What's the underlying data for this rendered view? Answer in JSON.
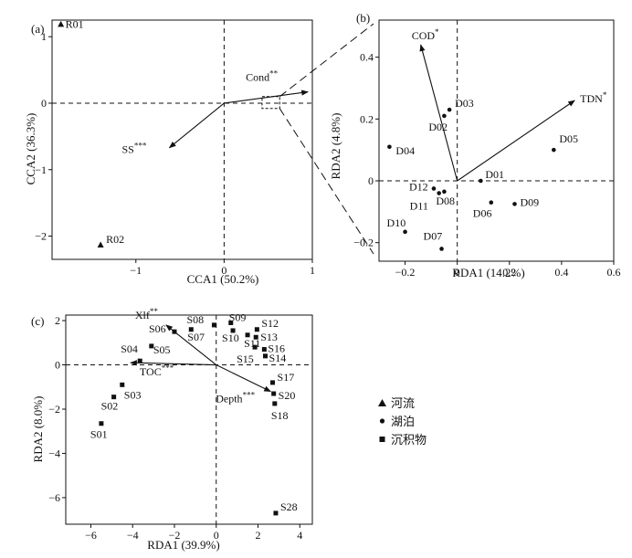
{
  "legend": {
    "items": [
      {
        "symbol": "triangle",
        "label": "河流"
      },
      {
        "symbol": "circle",
        "label": "湖泊"
      },
      {
        "symbol": "square",
        "label": "沉积物"
      }
    ]
  },
  "chart_data": [
    {
      "panel_label": "(a)",
      "type": "scatter",
      "xlabel": "CCA1 (50.2%)",
      "ylabel": "CCA2 (36.3%)",
      "xlim": [
        -1.95,
        1.0
      ],
      "ylim": [
        -2.35,
        1.25
      ],
      "xticks": [
        -1,
        0,
        1
      ],
      "yticks": [
        -2,
        -1,
        0,
        1
      ],
      "marker": "triangle",
      "points": [
        {
          "label": "R01",
          "x": -1.85,
          "y": 1.19
        },
        {
          "label": "R02",
          "x": -1.4,
          "y": -2.13
        }
      ],
      "arrows": [
        {
          "label": "Cond",
          "sup": "**",
          "x": 0.95,
          "y": 0.17
        },
        {
          "label": "SS",
          "sup": "***",
          "x": -0.62,
          "y": -0.67
        }
      ],
      "zoom_box": {
        "x": [
          0.43,
          0.63
        ],
        "y": [
          -0.08,
          0.1
        ]
      }
    },
    {
      "panel_label": "(b)",
      "type": "scatter",
      "xlabel": "RDA1 (14.2%)",
      "ylabel": "RDA2 (4.8%)",
      "xlim": [
        -0.3,
        0.6
      ],
      "ylim": [
        -0.26,
        0.52
      ],
      "xticks": [
        -0.2,
        0,
        0.2,
        0.4,
        0.6
      ],
      "yticks": [
        -0.2,
        0,
        0.2,
        0.4
      ],
      "marker": "circle",
      "points": [
        {
          "label": "D01",
          "x": 0.09,
          "y": 0.0
        },
        {
          "label": "D02",
          "x": -0.05,
          "y": 0.21
        },
        {
          "label": "D03",
          "x": -0.03,
          "y": 0.23
        },
        {
          "label": "D04",
          "x": -0.26,
          "y": 0.11
        },
        {
          "label": "D05",
          "x": 0.37,
          "y": 0.1
        },
        {
          "label": "D06",
          "x": 0.13,
          "y": -0.07
        },
        {
          "label": "D07",
          "x": -0.06,
          "y": -0.22
        },
        {
          "label": "D08",
          "x": -0.05,
          "y": -0.035
        },
        {
          "label": "D09",
          "x": 0.22,
          "y": -0.075
        },
        {
          "label": "D10",
          "x": -0.2,
          "y": -0.165
        },
        {
          "label": "D11",
          "x": -0.07,
          "y": -0.04
        },
        {
          "label": "D12",
          "x": -0.09,
          "y": -0.025
        }
      ],
      "arrows": [
        {
          "label": "COD",
          "sup": "*",
          "x": -0.14,
          "y": 0.44
        },
        {
          "label": "TDN",
          "sup": "*",
          "x": 0.45,
          "y": 0.26
        }
      ]
    },
    {
      "panel_label": "(c)",
      "type": "scatter",
      "xlabel": "RDA1 (39.9%)",
      "ylabel": "RDA2 (8.0%)",
      "xlim": [
        -7.2,
        4.6
      ],
      "ylim": [
        -7.2,
        2.25
      ],
      "xticks": [
        -6,
        -4,
        -2,
        0,
        2,
        4
      ],
      "yticks": [
        -6,
        -4,
        -2,
        0,
        2
      ],
      "marker": "square",
      "points": [
        {
          "label": "S01",
          "x": -5.5,
          "y": -2.65
        },
        {
          "label": "S02",
          "x": -4.9,
          "y": -1.45
        },
        {
          "label": "S03",
          "x": -4.5,
          "y": -0.9
        },
        {
          "label": "S04",
          "x": -3.65,
          "y": 0.18
        },
        {
          "label": "S05",
          "x": -3.1,
          "y": 0.85
        },
        {
          "label": "S06",
          "x": -2.0,
          "y": 1.5
        },
        {
          "label": "S07",
          "x": -1.2,
          "y": 1.6
        },
        {
          "label": "S08",
          "x": -0.1,
          "y": 1.8
        },
        {
          "label": "S09",
          "x": 0.7,
          "y": 1.9
        },
        {
          "label": "S10",
          "x": 0.8,
          "y": 1.55
        },
        {
          "label": "S11",
          "x": 1.5,
          "y": 1.35
        },
        {
          "label": "S12",
          "x": 1.95,
          "y": 1.6
        },
        {
          "label": "S13",
          "x": 1.9,
          "y": 1.25
        },
        {
          "label": "S14",
          "x": 2.35,
          "y": 0.4
        },
        {
          "label": "S15",
          "x": 1.85,
          "y": 0.8
        },
        {
          "label": "S16",
          "x": 2.3,
          "y": 0.7
        },
        {
          "label": "S17",
          "x": 2.7,
          "y": -0.8
        },
        {
          "label": "S18",
          "x": 2.8,
          "y": -1.75
        },
        {
          "label": "S20",
          "x": 2.75,
          "y": -1.3
        },
        {
          "label": "S28",
          "x": 2.85,
          "y": -6.7
        }
      ],
      "arrows": [
        {
          "label": "Xlf",
          "sup": "**",
          "x": -2.4,
          "y": 1.8
        },
        {
          "label": "TOC",
          "sup": "***",
          "x": -4.1,
          "y": 0.1
        },
        {
          "label": "Depth",
          "sup": "***",
          "x": 2.6,
          "y": -1.2
        }
      ]
    }
  ]
}
